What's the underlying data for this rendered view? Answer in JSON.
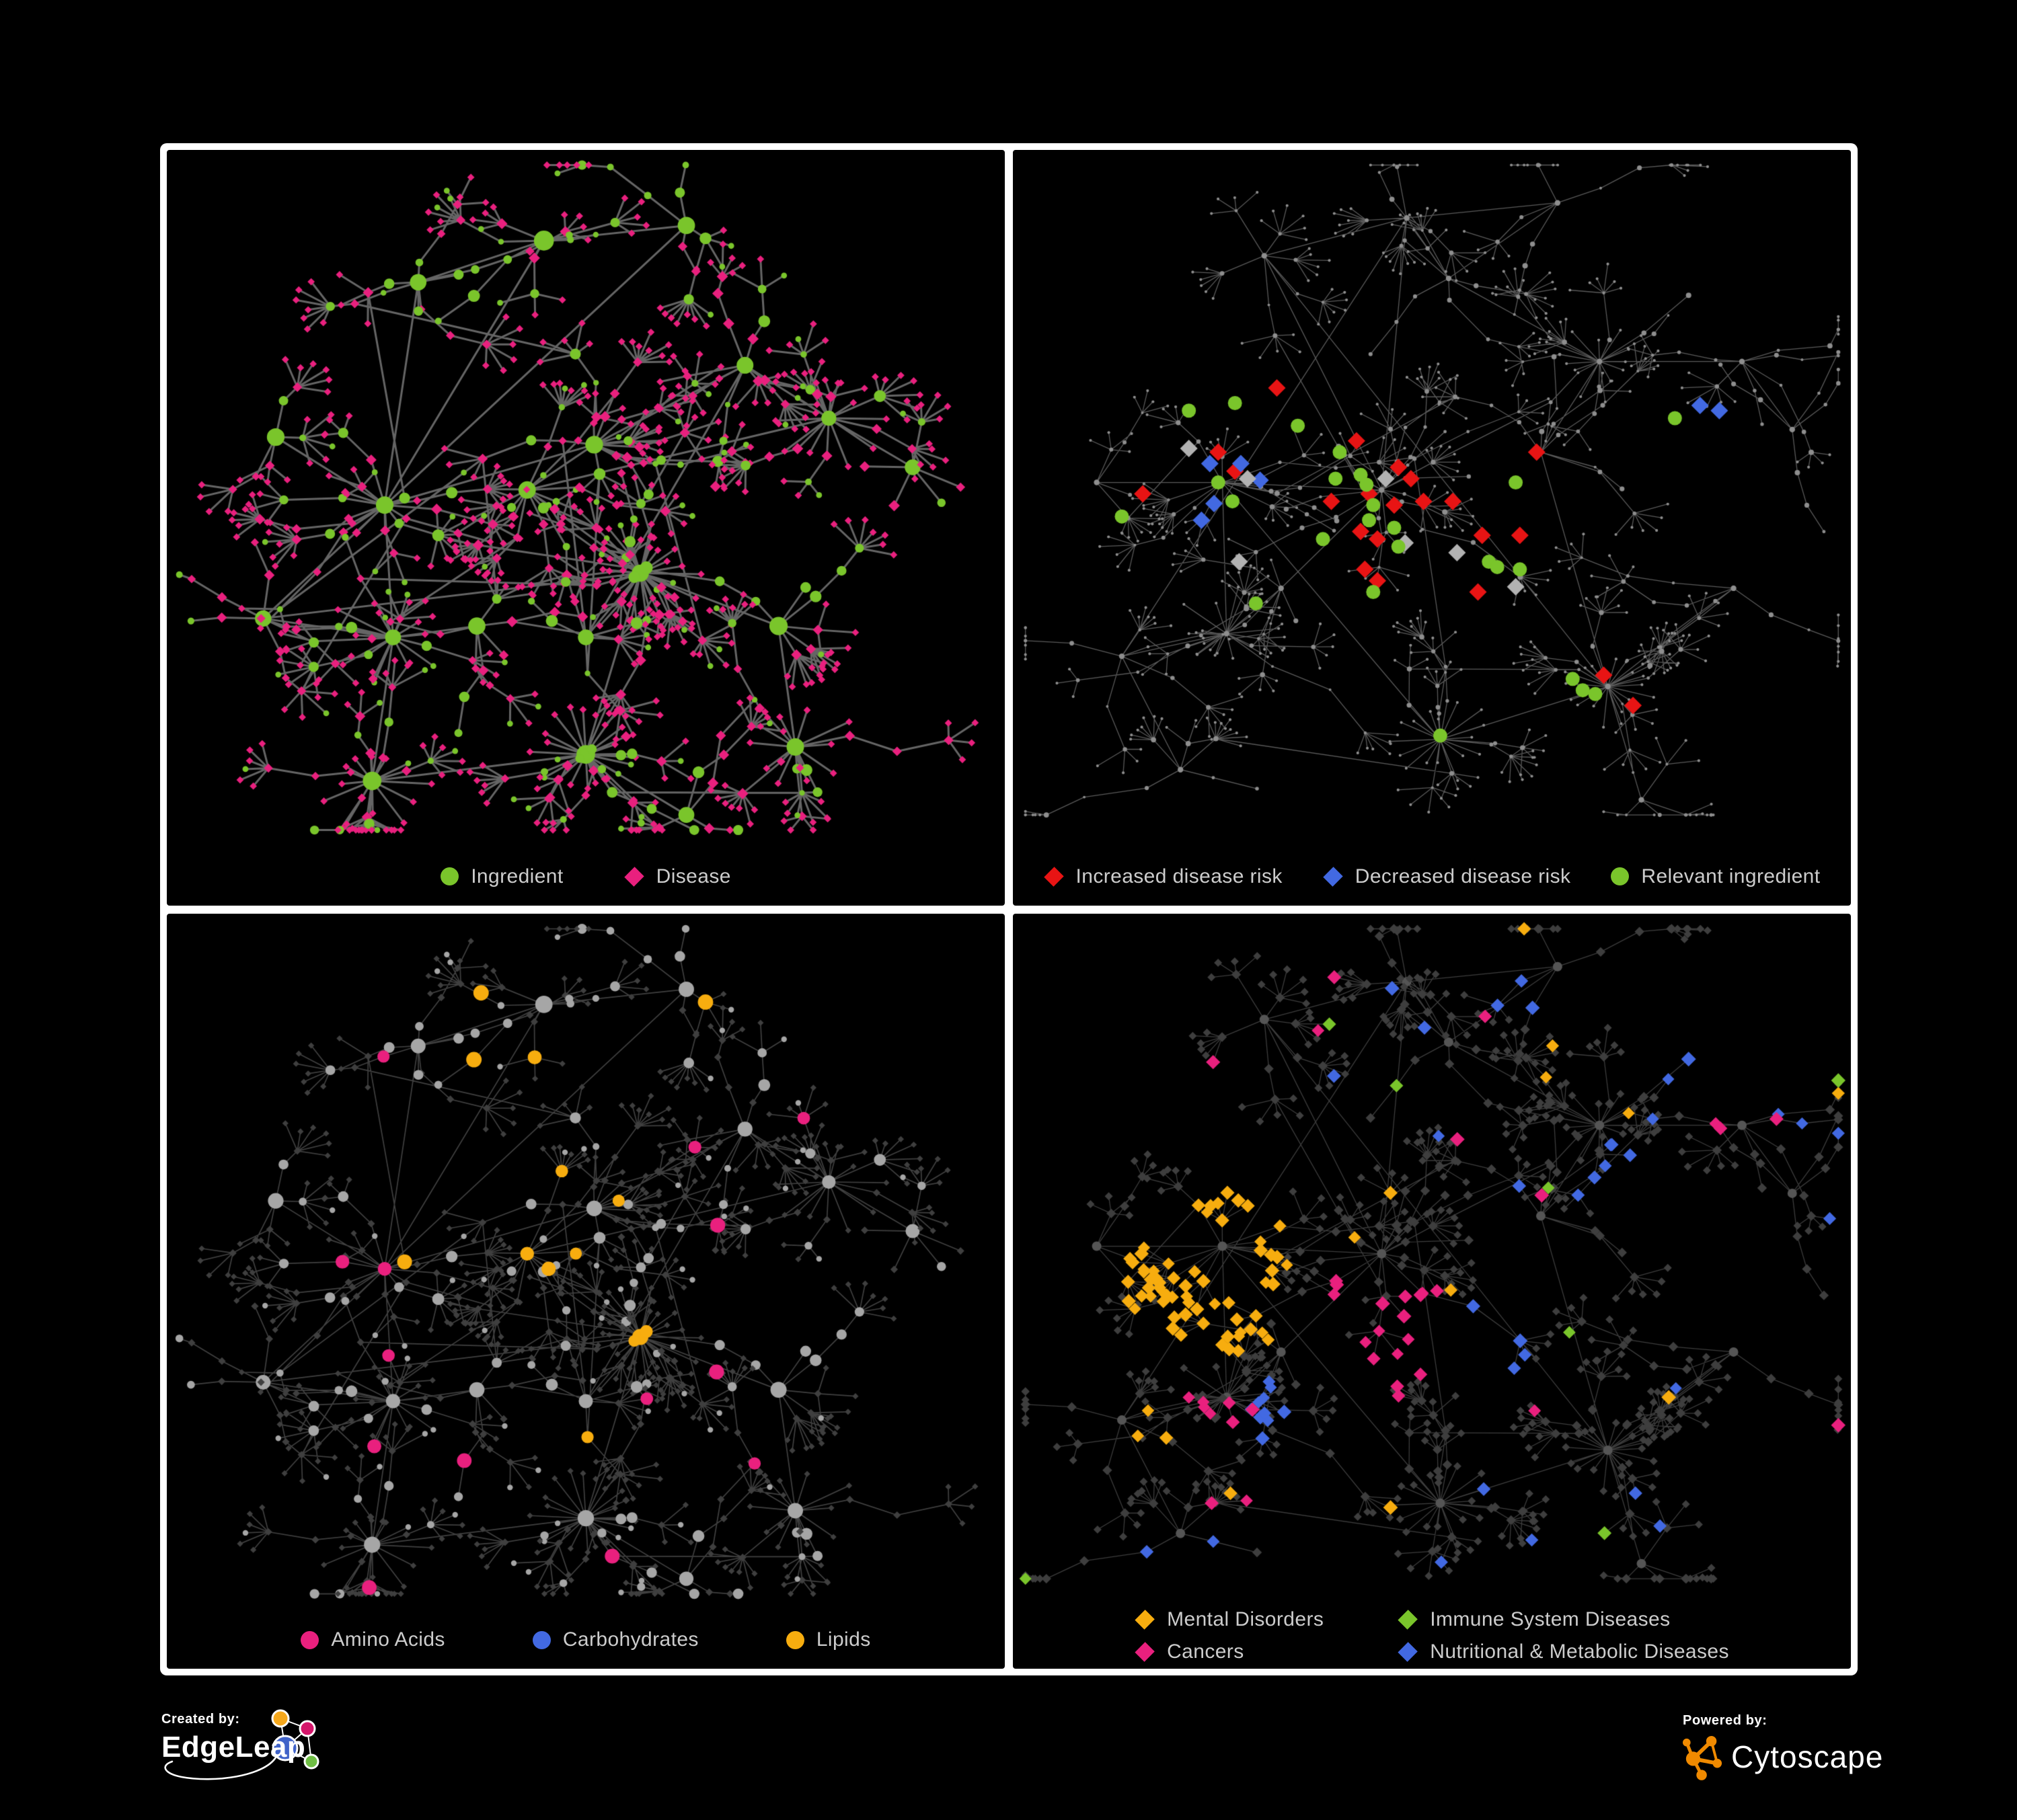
{
  "poster": {
    "background": "#000000",
    "frame_color": "#FFFFFF",
    "panel_background": "#000000"
  },
  "colors": {
    "green": "#7AC52B",
    "pink": "#E9207E",
    "red": "#E81414",
    "blue": "#4269E2",
    "amber": "#F7AD0F",
    "silver": "#B2B2B2",
    "legend_text": "#CCCCCC",
    "edgeleap_orange": "#F6A81C",
    "edgeleap_magenta": "#D4156A",
    "edgeleap_blue": "#4063C9",
    "edgeleap_green": "#6FBE44",
    "cytoscape_orange": "#F08A00"
  },
  "layouts": {
    "A": {
      "seed": 41,
      "step": 0.046,
      "leaf": 0.03,
      "segs": 3,
      "fan": 0.75,
      "cross": 40,
      "maxY": 0.9,
      "hubs": [
        [
          0.26,
          0.47,
          14
        ],
        [
          0.51,
          0.39,
          13
        ],
        [
          0.43,
          0.45,
          11
        ],
        [
          0.565,
          0.56,
          12,
          26
        ],
        [
          0.5,
          0.8,
          10,
          20
        ],
        [
          0.3,
          0.175,
          7
        ],
        [
          0.45,
          0.12,
          6
        ],
        [
          0.27,
          0.645,
          8,
          10
        ],
        [
          0.245,
          0.835,
          7,
          12
        ],
        [
          0.115,
          0.62,
          5
        ],
        [
          0.13,
          0.38,
          4
        ],
        [
          0.69,
          0.285,
          7
        ],
        [
          0.62,
          0.1,
          4
        ],
        [
          0.79,
          0.355,
          7,
          10
        ],
        [
          0.89,
          0.42,
          5
        ],
        [
          0.73,
          0.63,
          6
        ],
        [
          0.75,
          0.79,
          6,
          10
        ],
        [
          0.62,
          0.88,
          4
        ],
        [
          0.37,
          0.63,
          6
        ],
        [
          0.5,
          0.645,
          5
        ]
      ]
    },
    "B": {
      "seed": 7,
      "step": 0.05,
      "leaf": 0.027,
      "segs": 3,
      "fan": 0.8,
      "cross": 26,
      "maxY": 0.88,
      "hubs": [
        [
          0.44,
          0.45,
          16
        ],
        [
          0.25,
          0.44,
          12
        ],
        [
          0.47,
          0.09,
          5
        ],
        [
          0.3,
          0.14,
          6
        ],
        [
          0.52,
          0.17,
          6
        ],
        [
          0.65,
          0.07,
          4
        ],
        [
          0.7,
          0.28,
          8,
          12
        ],
        [
          0.87,
          0.28,
          6
        ],
        [
          0.93,
          0.37,
          4
        ],
        [
          0.63,
          0.4,
          6
        ],
        [
          0.71,
          0.71,
          9,
          18
        ],
        [
          0.51,
          0.78,
          8,
          16
        ],
        [
          0.255,
          0.64,
          7,
          10
        ],
        [
          0.13,
          0.67,
          5
        ],
        [
          0.2,
          0.82,
          5
        ],
        [
          0.32,
          0.58,
          6
        ],
        [
          0.1,
          0.44,
          4
        ],
        [
          0.75,
          0.86,
          4
        ],
        [
          0.86,
          0.58,
          4
        ]
      ]
    }
  },
  "panels": [
    {
      "name": "ingredient-disease-network",
      "layout": "A",
      "legend": {
        "mode": "row",
        "gap": 90,
        "items": [
          {
            "shape": "circle",
            "color": "green",
            "label": "Ingredient"
          },
          {
            "shape": "diamond",
            "color": "pink",
            "label": "Disease"
          }
        ]
      },
      "paint": {
        "kind": "dual",
        "edge": "rgba(112,112,112,0.9)",
        "ew": 3.0,
        "circleColor": "green",
        "diamondColor": "pink",
        "circleProb": 0.44,
        "leafCircleProb": 0.12,
        "sizes": {
          "hub": 11,
          "midMin": 4,
          "midMax": 9,
          "leaf": 4.4,
          "dMidMin": 6,
          "dMidMax": 8.5,
          "dLeaf": 5.4
        },
        "blobs": [
          {
            "hub": 3,
            "color": "green",
            "r": 12
          },
          {
            "hub": 4,
            "color": "green",
            "r": 9
          }
        ]
      }
    },
    {
      "name": "disease-risk-network",
      "layout": "B",
      "legend": {
        "mode": "row",
        "gap": 60,
        "items": [
          {
            "shape": "diamond",
            "color": "red",
            "label": "Increased disease risk"
          },
          {
            "shape": "diamond",
            "color": "blue",
            "label": "Decreased disease risk"
          },
          {
            "shape": "circle",
            "color": "green",
            "label": "Relevant ingredient"
          }
        ]
      },
      "paint": {
        "kind": "spark",
        "edge": "rgba(120,120,120,0.75)",
        "ew": 1.3,
        "node": "#8E8E8E",
        "sizes": {
          "hub": 4.2,
          "mid": 2.7,
          "leaf": 2.1
        },
        "marker": {
          "diamond": 13,
          "circle": 10.5
        },
        "markerShapes": {
          "red": "diamond",
          "blue": "diamond",
          "gray": "diamond",
          "green": "circle"
        },
        "markerColors": {
          "gray": "silver"
        },
        "highlights": {
          "red": [
            [
              0.315,
              0.315
            ],
            [
              0.41,
              0.385
            ],
            [
              0.245,
              0.4
            ],
            [
              0.265,
              0.425
            ],
            [
              0.155,
              0.455
            ],
            [
              0.46,
              0.42
            ],
            [
              0.475,
              0.435
            ],
            [
              0.38,
              0.465
            ],
            [
              0.425,
              0.455
            ],
            [
              0.455,
              0.47
            ],
            [
              0.49,
              0.465
            ],
            [
              0.525,
              0.465
            ],
            [
              0.625,
              0.4
            ],
            [
              0.415,
              0.505
            ],
            [
              0.435,
              0.515
            ],
            [
              0.56,
              0.51
            ],
            [
              0.605,
              0.51
            ],
            [
              0.42,
              0.555
            ],
            [
              0.435,
              0.57
            ],
            [
              0.555,
              0.585
            ],
            [
              0.705,
              0.695
            ],
            [
              0.74,
              0.735
            ]
          ],
          "blue": [
            [
              0.235,
              0.415
            ],
            [
              0.272,
              0.415
            ],
            [
              0.295,
              0.437
            ],
            [
              0.24,
              0.468
            ],
            [
              0.225,
              0.49
            ],
            [
              0.82,
              0.338
            ],
            [
              0.843,
              0.345
            ]
          ],
          "gray": [
            [
              0.21,
              0.395
            ],
            [
              0.28,
              0.435
            ],
            [
              0.445,
              0.435
            ],
            [
              0.27,
              0.545
            ],
            [
              0.468,
              0.52
            ],
            [
              0.53,
              0.533
            ],
            [
              0.6,
              0.578
            ]
          ],
          "green": [
            [
              0.21,
              0.345
            ],
            [
              0.265,
              0.335
            ],
            [
              0.34,
              0.365
            ],
            [
              0.245,
              0.44
            ],
            [
              0.262,
              0.465
            ],
            [
              0.13,
              0.485
            ],
            [
              0.385,
              0.435
            ],
            [
              0.39,
              0.4
            ],
            [
              0.415,
              0.43
            ],
            [
              0.422,
              0.443
            ],
            [
              0.43,
              0.47
            ],
            [
              0.425,
              0.49
            ],
            [
              0.455,
              0.5
            ],
            [
              0.46,
              0.525
            ],
            [
              0.37,
              0.515
            ],
            [
              0.43,
              0.585
            ],
            [
              0.29,
              0.6
            ],
            [
              0.568,
              0.545
            ],
            [
              0.578,
              0.552
            ],
            [
              0.605,
              0.555
            ],
            [
              0.79,
              0.355
            ],
            [
              0.668,
              0.7
            ],
            [
              0.68,
              0.715
            ],
            [
              0.695,
              0.72
            ],
            [
              0.51,
              0.775
            ],
            [
              0.6,
              0.44
            ]
          ]
        }
      }
    },
    {
      "name": "ingredient-class-network",
      "layout": "A",
      "legend": {
        "mode": "row",
        "gap": 130,
        "items": [
          {
            "shape": "circle",
            "color": "pink",
            "label": "Amino Acids"
          },
          {
            "shape": "circle",
            "color": "blue",
            "label": "Carbohydrates"
          },
          {
            "shape": "circle",
            "color": "amber",
            "label": "Lipids"
          }
        ]
      },
      "paint": {
        "kind": "zones",
        "base": "dual",
        "edge": "rgba(160,160,160,0.40)",
        "ew": 1.7,
        "grayCircle": "#A6A6A6",
        "darkDiamond": "#3F3F3F",
        "circleProb": 0.44,
        "leafCircleProb": 0.12,
        "sizes": {
          "hub": 10,
          "midMin": 5,
          "midMax": 9,
          "leaf": 4.2,
          "dMid": 5.6,
          "dLeaf": 4.6,
          "colored": 9
        },
        "zones": [
          [
            "amber",
            0.5,
            0.4,
            0.055,
            0.75
          ],
          [
            "amber",
            0.43,
            0.48,
            0.06,
            0.4
          ],
          [
            "amber",
            0.43,
            0.2,
            0.065,
            0.4
          ],
          [
            "amber",
            0.66,
            0.55,
            0.04,
            0.55
          ],
          [
            "blue",
            0.5,
            0.4,
            0.06,
            0.22
          ],
          [
            "blue",
            0.44,
            0.26,
            0.05,
            0.18
          ],
          [
            "pink",
            0.7,
            0.71,
            0.055,
            0.45
          ]
        ],
        "scatter": [
          [
            "amber",
            0.035,
            0
          ],
          [
            "blue",
            0.01,
            0
          ],
          [
            "pink",
            0.05,
            0.17
          ]
        ],
        "blobs": [
          {
            "hub": 3,
            "color": "amber",
            "r": 12
          }
        ],
        "hubColor": {
          "0": "pink"
        }
      }
    },
    {
      "name": "disease-category-network",
      "layout": "B",
      "legend": {
        "mode": "grid",
        "items": [
          {
            "shape": "diamond",
            "color": "amber",
            "label": "Mental Disorders"
          },
          {
            "shape": "diamond",
            "color": "green",
            "label": "Immune System Diseases"
          },
          {
            "shape": "diamond",
            "color": "pink",
            "label": "Cancers"
          },
          {
            "shape": "diamond",
            "color": "blue",
            "label": "Nutritional & Metabolic Diseases"
          }
        ]
      },
      "paint": {
        "kind": "zones",
        "base": "diamond",
        "edge": "rgba(168,168,168,0.36)",
        "ew": 1.3,
        "darkDiamond": "#3E3E3E",
        "hubCircle": "#555555",
        "sizes": {
          "hub": 7,
          "dMid": 7.2,
          "dLeaf": 6.0,
          "colored": 9
        },
        "zones": [
          [
            "amber",
            0.225,
            0.46,
            0.105,
            0.85
          ],
          [
            "amber",
            0.27,
            0.53,
            0.05,
            0.55
          ],
          [
            "pink",
            0.43,
            0.52,
            0.085,
            0.5
          ],
          [
            "pink",
            0.475,
            0.575,
            0.055,
            0.55
          ],
          [
            "pink",
            0.44,
            0.345,
            0.05,
            0.3
          ],
          [
            "pink",
            0.88,
            0.27,
            0.05,
            0.75
          ],
          [
            "blue",
            0.57,
            0.565,
            0.055,
            0.75
          ],
          [
            "blue",
            0.62,
            0.47,
            0.045,
            0.5
          ],
          [
            "blue",
            0.73,
            0.36,
            0.06,
            0.5
          ],
          [
            "blue",
            0.16,
            0.145,
            0.05,
            0.5
          ],
          [
            "blue",
            0.28,
            0.22,
            0.055,
            0.3
          ],
          [
            "blue",
            0.61,
            0.09,
            0.045,
            0.45
          ],
          [
            "blue",
            0.8,
            0.19,
            0.035,
            0.5
          ],
          [
            "blue",
            0.3,
            0.655,
            0.04,
            0.35
          ],
          [
            "amber",
            0.15,
            0.705,
            0.035,
            0.5
          ],
          [
            "pink",
            0.25,
            0.67,
            0.04,
            0.4
          ]
        ],
        "scatter": [
          [
            "blue",
            0.025,
            0
          ],
          [
            "amber",
            0.012,
            0
          ],
          [
            "pink",
            0.012,
            0
          ],
          [
            "green",
            0.013,
            0
          ]
        ]
      }
    }
  ],
  "footer": {
    "created_by": "Created by:",
    "brand": "EdgeLeap",
    "powered_by": "Powered by:",
    "engine": "Cytoscape"
  }
}
